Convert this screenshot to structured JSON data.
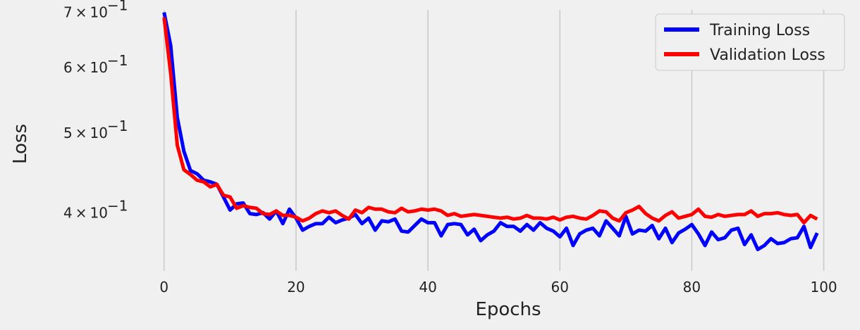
{
  "chart_data": {
    "type": "line",
    "xlabel": "Epochs",
    "ylabel": "Loss",
    "y_scale": "log",
    "xlim": [
      -5,
      104
    ],
    "ylim": [
      0.34,
      0.705
    ],
    "x_ticks": [
      0,
      20,
      40,
      60,
      80,
      100
    ],
    "x_tick_labels": [
      "0",
      "20",
      "40",
      "60",
      "80",
      "100"
    ],
    "y_ticks": [
      0.4,
      0.5,
      0.6,
      0.7
    ],
    "y_tick_labels": [
      {
        "mantissa": "4",
        "times": "×",
        "base": "10",
        "exp": "−1"
      },
      {
        "mantissa": "5",
        "times": "×",
        "base": "10",
        "exp": "−1"
      },
      {
        "mantissa": "6",
        "times": "×",
        "base": "10",
        "exp": "−1"
      },
      {
        "mantissa": "7",
        "times": "×",
        "base": "10",
        "exp": "−1"
      }
    ],
    "grid": "x-major",
    "legend_position": "top-right",
    "x": [
      0,
      1,
      2,
      3,
      4,
      5,
      6,
      7,
      8,
      9,
      10,
      11,
      12,
      13,
      14,
      15,
      16,
      17,
      18,
      19,
      20,
      21,
      22,
      23,
      24,
      25,
      26,
      27,
      28,
      29,
      30,
      31,
      32,
      33,
      34,
      35,
      36,
      37,
      38,
      39,
      40,
      41,
      42,
      43,
      44,
      45,
      46,
      47,
      48,
      49,
      50,
      51,
      52,
      53,
      54,
      55,
      56,
      57,
      58,
      59,
      60,
      61,
      62,
      63,
      64,
      65,
      66,
      67,
      68,
      69,
      70,
      71,
      72,
      73,
      74,
      75,
      76,
      77,
      78,
      79,
      80,
      81,
      82,
      83,
      84,
      85,
      86,
      87,
      88,
      89,
      90,
      91,
      92,
      93,
      94,
      95,
      96,
      97,
      98,
      99
    ],
    "series": [
      {
        "name": "Training Loss",
        "color": "#0000ff",
        "values": [
          0.7,
          0.638,
          0.522,
          0.475,
          0.45,
          0.446,
          0.438,
          0.436,
          0.433,
          0.418,
          0.403,
          0.41,
          0.411,
          0.399,
          0.398,
          0.4,
          0.393,
          0.402,
          0.388,
          0.404,
          0.394,
          0.381,
          0.385,
          0.388,
          0.388,
          0.395,
          0.389,
          0.392,
          0.394,
          0.398,
          0.388,
          0.394,
          0.381,
          0.391,
          0.39,
          0.393,
          0.38,
          0.379,
          0.386,
          0.393,
          0.389,
          0.389,
          0.375,
          0.387,
          0.388,
          0.387,
          0.376,
          0.382,
          0.37,
          0.376,
          0.38,
          0.389,
          0.385,
          0.385,
          0.38,
          0.387,
          0.381,
          0.389,
          0.383,
          0.38,
          0.374,
          0.383,
          0.365,
          0.377,
          0.381,
          0.383,
          0.375,
          0.391,
          0.383,
          0.375,
          0.396,
          0.377,
          0.381,
          0.38,
          0.386,
          0.372,
          0.383,
          0.368,
          0.378,
          0.382,
          0.387,
          0.377,
          0.365,
          0.379,
          0.371,
          0.373,
          0.381,
          0.383,
          0.366,
          0.376,
          0.361,
          0.365,
          0.372,
          0.367,
          0.368,
          0.372,
          0.373,
          0.385,
          0.363,
          0.378
        ]
      },
      {
        "name": "Validation Loss",
        "color": "#ff0000",
        "values": [
          0.69,
          0.59,
          0.483,
          0.451,
          0.445,
          0.438,
          0.436,
          0.43,
          0.433,
          0.42,
          0.418,
          0.405,
          0.408,
          0.406,
          0.405,
          0.399,
          0.398,
          0.402,
          0.397,
          0.397,
          0.395,
          0.391,
          0.394,
          0.399,
          0.402,
          0.4,
          0.402,
          0.397,
          0.393,
          0.403,
          0.4,
          0.406,
          0.404,
          0.404,
          0.401,
          0.4,
          0.405,
          0.401,
          0.402,
          0.404,
          0.403,
          0.404,
          0.402,
          0.397,
          0.399,
          0.396,
          0.397,
          0.398,
          0.397,
          0.396,
          0.395,
          0.394,
          0.395,
          0.393,
          0.394,
          0.397,
          0.394,
          0.394,
          0.393,
          0.395,
          0.392,
          0.395,
          0.396,
          0.394,
          0.393,
          0.397,
          0.402,
          0.401,
          0.394,
          0.391,
          0.4,
          0.403,
          0.407,
          0.399,
          0.394,
          0.391,
          0.397,
          0.401,
          0.394,
          0.396,
          0.398,
          0.404,
          0.396,
          0.395,
          0.398,
          0.396,
          0.397,
          0.398,
          0.398,
          0.402,
          0.396,
          0.399,
          0.399,
          0.4,
          0.398,
          0.397,
          0.398,
          0.389,
          0.397,
          0.393
        ]
      }
    ]
  }
}
